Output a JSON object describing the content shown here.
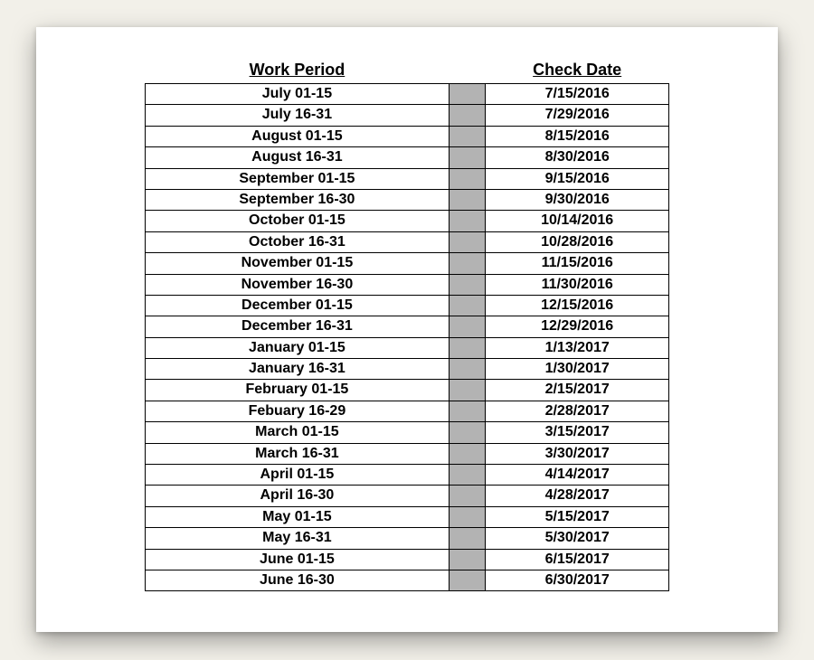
{
  "table": {
    "type": "table",
    "columns": [
      {
        "key": "work_period",
        "label": "Work Period",
        "width_pct": 58,
        "align": "center"
      },
      {
        "key": "separator",
        "label": "",
        "width_pct": 7,
        "align": "center",
        "fill_color": "#b3b3b3"
      },
      {
        "key": "check_date",
        "label": "Check Date",
        "width_pct": 35,
        "align": "center"
      }
    ],
    "header_fontsize": 18,
    "cell_fontsize": 16,
    "font_weight": "bold",
    "border_color": "#000000",
    "border_width": 1.5,
    "background_color": "#ffffff",
    "separator_fill": "#b3b3b3",
    "rows": [
      {
        "work_period": "July 01-15",
        "check_date": "7/15/2016"
      },
      {
        "work_period": "July 16-31",
        "check_date": "7/29/2016"
      },
      {
        "work_period": "August 01-15",
        "check_date": "8/15/2016"
      },
      {
        "work_period": "August 16-31",
        "check_date": "8/30/2016"
      },
      {
        "work_period": "September 01-15",
        "check_date": "9/15/2016"
      },
      {
        "work_period": "September 16-30",
        "check_date": "9/30/2016"
      },
      {
        "work_period": "October 01-15",
        "check_date": "10/14/2016"
      },
      {
        "work_period": "October 16-31",
        "check_date": "10/28/2016"
      },
      {
        "work_period": "November 01-15",
        "check_date": "11/15/2016"
      },
      {
        "work_period": "November 16-30",
        "check_date": "11/30/2016"
      },
      {
        "work_period": "December 01-15",
        "check_date": "12/15/2016"
      },
      {
        "work_period": "December 16-31",
        "check_date": "12/29/2016"
      },
      {
        "work_period": "January 01-15",
        "check_date": "1/13/2017"
      },
      {
        "work_period": "January 16-31",
        "check_date": "1/30/2017"
      },
      {
        "work_period": "February 01-15",
        "check_date": "2/15/2017"
      },
      {
        "work_period": "Febuary 16-29",
        "check_date": "2/28/2017"
      },
      {
        "work_period": "March 01-15",
        "check_date": "3/15/2017"
      },
      {
        "work_period": "March 16-31",
        "check_date": "3/30/2017"
      },
      {
        "work_period": "April 01-15",
        "check_date": "4/14/2017"
      },
      {
        "work_period": "April 16-30",
        "check_date": "4/28/2017"
      },
      {
        "work_period": "May 01-15",
        "check_date": "5/15/2017"
      },
      {
        "work_period": "May 16-31",
        "check_date": "5/30/2017"
      },
      {
        "work_period": "June 01-15",
        "check_date": "6/15/2017"
      },
      {
        "work_period": "June 16-30",
        "check_date": "6/30/2017"
      }
    ]
  },
  "card": {
    "background_color": "#ffffff",
    "page_background_color": "#f2f0e9",
    "shadow": true
  }
}
